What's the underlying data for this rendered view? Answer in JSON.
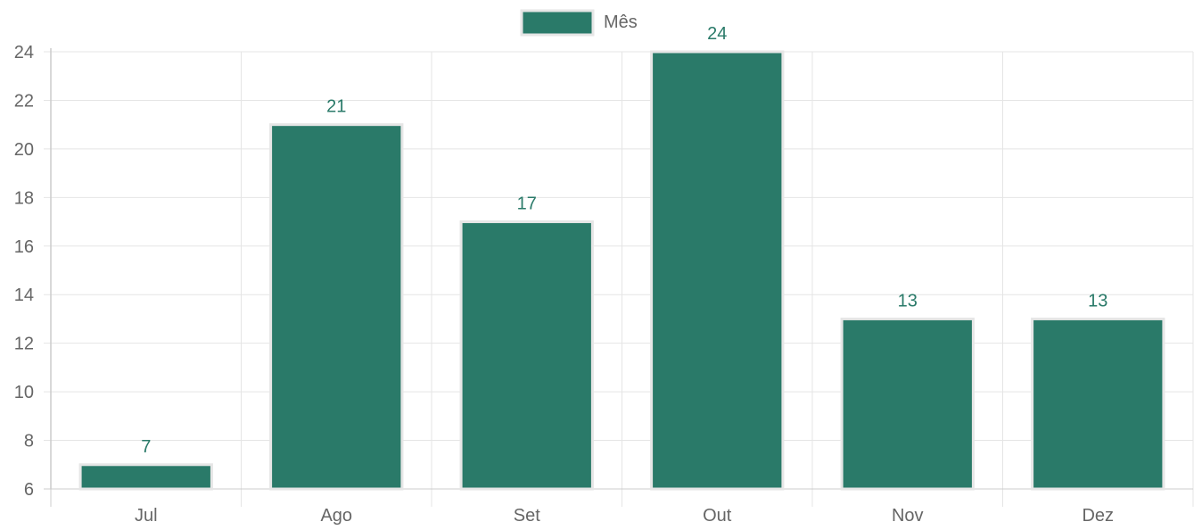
{
  "chart_data": {
    "type": "bar",
    "categories": [
      "Jul",
      "Ago",
      "Set",
      "Out",
      "Nov",
      "Dez"
    ],
    "series": [
      {
        "name": "Mês",
        "values": [
          7,
          21,
          17,
          24,
          13,
          13
        ],
        "color": "#2a7a69"
      }
    ],
    "data_labels": [
      "7",
      "21",
      "17",
      "24",
      "13",
      "13"
    ],
    "y_ticks": [
      "6",
      "8",
      "10",
      "12",
      "14",
      "16",
      "18",
      "20",
      "22",
      "24"
    ],
    "ylim": [
      6,
      24
    ],
    "grid": true,
    "legend_position": "top-center",
    "bar_border_color": "#e6e6e6",
    "grid_color": "#e5e5e5",
    "axis_color": "#cccccc",
    "label_color": "#666666",
    "data_label_color": "#2a7a69"
  }
}
